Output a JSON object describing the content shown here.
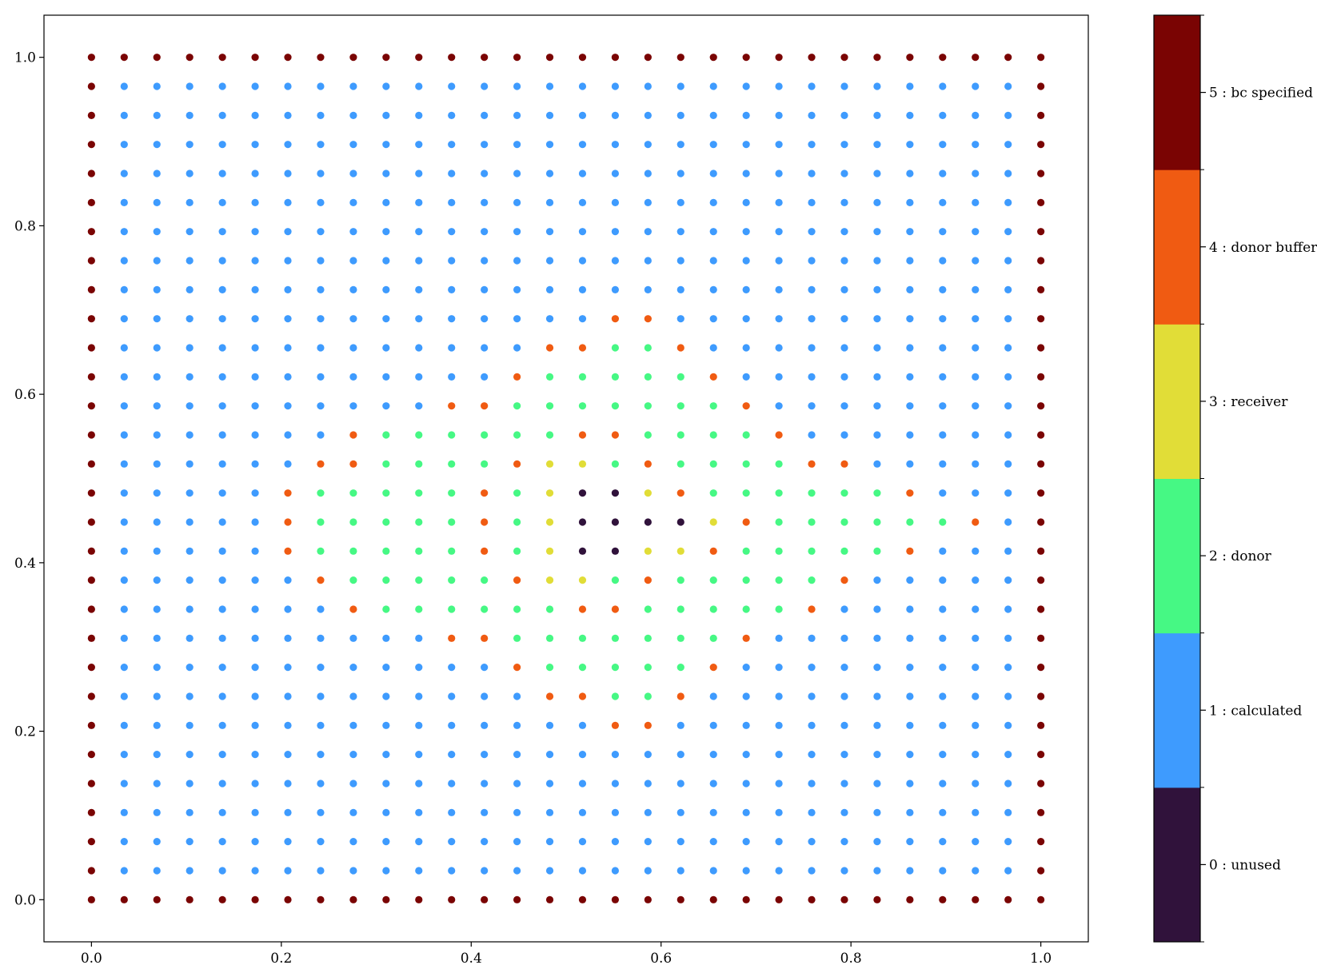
{
  "chart_data": {
    "type": "scatter",
    "title": "",
    "xlabel": "",
    "ylabel": "",
    "xlim": [
      -0.05,
      1.05
    ],
    "ylim": [
      -0.05,
      1.05
    ],
    "grid": false,
    "x_ticks": [
      0.0,
      0.2,
      0.4,
      0.6,
      0.8,
      1.0
    ],
    "x_tick_labels": [
      "0.0",
      "0.2",
      "0.4",
      "0.6",
      "0.8",
      "1.0"
    ],
    "y_ticks": [
      0.0,
      0.2,
      0.4,
      0.6,
      0.8,
      1.0
    ],
    "y_tick_labels": [
      "0.0",
      "0.2",
      "0.4",
      "0.6",
      "0.8",
      "1.0"
    ],
    "grid_points": {
      "n": 30,
      "min": 0.0,
      "max": 1.0
    },
    "categories": [
      {
        "value": 0,
        "label": "0 : unused",
        "color": "#30123b"
      },
      {
        "value": 1,
        "label": "1 : calculated",
        "color": "#3e9bfe"
      },
      {
        "value": 2,
        "label": "2 : donor",
        "color": "#46f884"
      },
      {
        "value": 3,
        "label": "3 : receiver",
        "color": "#e1dd37"
      },
      {
        "value": 4,
        "label": "4 : donor buffer",
        "color": "#f05b12"
      },
      {
        "value": 5,
        "label": "5 : bc specified",
        "color": "#7a0403"
      }
    ],
    "status_rows_top_to_bottom": [
      "555555555555555555555555555555",
      "511111111111111111111111111115",
      "511111111111111111111111111115",
      "511111111111111111111111111115",
      "511111111111111111111111111115",
      "511111111111111111111111111115",
      "511111111111111111111111111115",
      "511111111111111111111111111115",
      "511111111111111111111111111115",
      "511111111111111144111111111115",
      "511111111111114422411111111115",
      "511111111111142222241111111115",
      "511111111114422222224111111115",
      "511111114222222442222411111115",
      "511111144222243324222244111115",
      "511111422222423003422222241115",
      "511111422222423000034222222415",
      "511111422222423003342222241115",
      "511111142222243324222224111115",
      "511111114222222442222241111115",
      "511111111114422222224111111115",
      "511111111111142222241111111115",
      "511111111111114422411111111115",
      "511111111111111144111111111115",
      "511111111111111111111111111115",
      "511111111111111111111111111115",
      "511111111111111111111111111115",
      "511111111111111111111111111115",
      "511111111111111111111111111115",
      "555555555555555555555555555555"
    ]
  }
}
